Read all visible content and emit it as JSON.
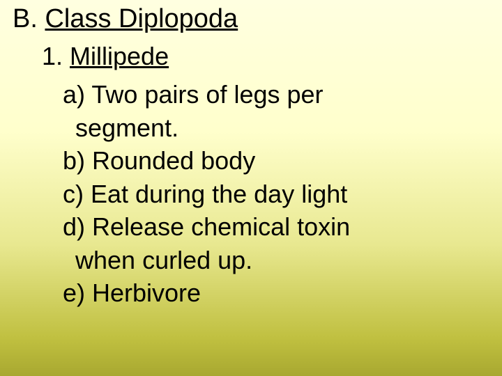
{
  "slide": {
    "background_gradient": [
      "#ffffe0",
      "#ffffcc",
      "#e8e890",
      "#c0c040",
      "#a8a830"
    ],
    "text_color": "#000000",
    "font_family": "Arial",
    "heading": {
      "label": "B. ",
      "title": "Class Diplopoda",
      "fontsize": 38,
      "underline_title": true
    },
    "subheading": {
      "label": "1. ",
      "title": "Millipede",
      "fontsize": 36,
      "underline_title": true
    },
    "items_fontsize": 36,
    "items": [
      {
        "text": "a) Two pairs of legs per",
        "cont": "segment."
      },
      {
        "text": "b) Rounded body"
      },
      {
        "text": "c) Eat during the day light"
      },
      {
        "text": "d) Release chemical toxin",
        "cont": "when curled up."
      },
      {
        "text": "e) Herbivore"
      }
    ]
  }
}
